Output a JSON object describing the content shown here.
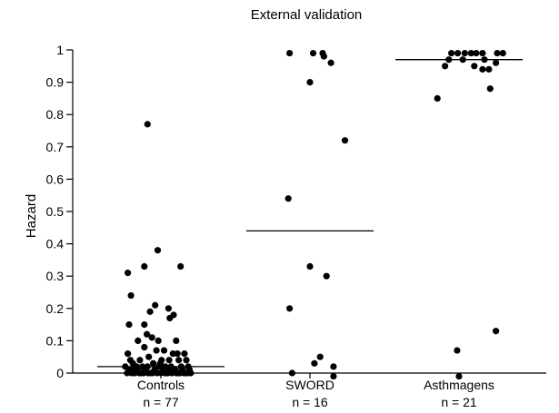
{
  "chart_data": {
    "type": "scatter",
    "title": "External validation",
    "xlabel": "",
    "ylabel": "Hazard",
    "ylim": [
      0,
      1
    ],
    "yticks": [
      0,
      0.1,
      0.2,
      0.3,
      0.4,
      0.5,
      0.6,
      0.7,
      0.8,
      0.9,
      1
    ],
    "ytick_labels": [
      "0",
      "0.1",
      "0.2",
      "0.3",
      "0.4",
      "0.5",
      "0.6",
      "0.7",
      "0.8",
      "0.9",
      "1"
    ],
    "grid": false,
    "categories": [
      {
        "label": "Controls",
        "n_label": "n = 77"
      },
      {
        "label": "SWORD",
        "n_label": "n = 16"
      },
      {
        "label": "Asthmagens",
        "n_label": "n = 21"
      }
    ],
    "series": [
      {
        "category": "Controls",
        "median": 0.02,
        "points": [
          [
            -0.52,
            0.31
          ],
          [
            -0.5,
            0.15
          ],
          [
            -0.47,
            0.24
          ],
          [
            -0.21,
            0.77
          ],
          [
            -0.05,
            0.38
          ],
          [
            -0.26,
            0.33
          ],
          [
            0.31,
            0.33
          ],
          [
            -0.09,
            0.21
          ],
          [
            0.12,
            0.2
          ],
          [
            0.2,
            0.18
          ],
          [
            -0.17,
            0.19
          ],
          [
            -0.26,
            0.15
          ],
          [
            0.14,
            0.17
          ],
          [
            -0.22,
            0.12
          ],
          [
            -0.36,
            0.1
          ],
          [
            -0.14,
            0.11
          ],
          [
            -0.04,
            0.1
          ],
          [
            0.24,
            0.1
          ],
          [
            -0.52,
            0.06
          ],
          [
            -0.26,
            0.08
          ],
          [
            -0.07,
            0.07
          ],
          [
            0.05,
            0.07
          ],
          [
            0.19,
            0.06
          ],
          [
            0.26,
            0.06
          ],
          [
            0.37,
            0.06
          ],
          [
            -0.48,
            0.04
          ],
          [
            -0.33,
            0.04
          ],
          [
            -0.19,
            0.05
          ],
          [
            0.01,
            0.04
          ],
          [
            0.13,
            0.04
          ],
          [
            0.28,
            0.04
          ],
          [
            0.4,
            0.04
          ],
          [
            -0.56,
            0.02
          ],
          [
            -0.44,
            0.01
          ],
          [
            -0.38,
            0.02
          ],
          [
            -0.29,
            0.02
          ],
          [
            -0.21,
            0.02
          ],
          [
            -0.12,
            0.03
          ],
          [
            -0.03,
            0.02
          ],
          [
            0.07,
            0.02
          ],
          [
            0.16,
            0.02
          ],
          [
            0.23,
            0.01
          ],
          [
            0.32,
            0.02
          ],
          [
            0.43,
            0.02
          ],
          [
            -0.53,
            0.0
          ],
          [
            -0.46,
            0.0
          ],
          [
            -0.41,
            0.0
          ],
          [
            -0.34,
            0.0
          ],
          [
            -0.27,
            0.0
          ],
          [
            -0.2,
            0.0
          ],
          [
            -0.13,
            0.0
          ],
          [
            -0.06,
            0.0
          ],
          [
            0.0,
            0.0
          ],
          [
            0.06,
            0.0
          ],
          [
            0.11,
            0.0
          ],
          [
            0.17,
            0.0
          ],
          [
            0.24,
            0.0
          ],
          [
            0.3,
            0.0
          ],
          [
            0.36,
            0.0
          ],
          [
            0.42,
            0.0
          ],
          [
            0.47,
            0.0
          ],
          [
            -0.5,
            0.01
          ],
          [
            -0.37,
            0.01
          ],
          [
            -0.24,
            0.01
          ],
          [
            -0.1,
            0.01
          ],
          [
            0.03,
            0.01
          ],
          [
            0.19,
            0.01
          ],
          [
            0.34,
            0.01
          ],
          [
            0.45,
            0.01
          ],
          [
            -0.16,
            0.0
          ],
          [
            0.09,
            0.0
          ],
          [
            0.27,
            0.0
          ],
          [
            -0.31,
            0.0
          ],
          [
            0.39,
            0.0
          ],
          [
            -0.44,
            0.03
          ],
          [
            0.14,
            0.01
          ],
          [
            -0.01,
            0.03
          ]
        ]
      },
      {
        "category": "SWORD",
        "median": 0.44,
        "points": [
          [
            -0.32,
            0.99
          ],
          [
            0.05,
            0.99
          ],
          [
            0.2,
            0.99
          ],
          [
            0.22,
            0.98
          ],
          [
            0.33,
            0.96
          ],
          [
            0.0,
            0.9
          ],
          [
            0.55,
            0.72
          ],
          [
            -0.34,
            0.54
          ],
          [
            0.0,
            0.33
          ],
          [
            0.26,
            0.3
          ],
          [
            -0.32,
            0.2
          ],
          [
            0.16,
            0.05
          ],
          [
            0.37,
            0.02
          ],
          [
            -0.28,
            0.0
          ],
          [
            0.37,
            -0.01
          ],
          [
            0.07,
            0.03
          ]
        ]
      },
      {
        "category": "Asthmagens",
        "median": 0.97,
        "points": [
          [
            -0.12,
            0.99
          ],
          [
            -0.02,
            0.99
          ],
          [
            0.09,
            0.99
          ],
          [
            0.19,
            0.99
          ],
          [
            0.27,
            0.99
          ],
          [
            0.37,
            0.99
          ],
          [
            0.6,
            0.99
          ],
          [
            0.69,
            0.99
          ],
          [
            -0.16,
            0.97
          ],
          [
            0.06,
            0.97
          ],
          [
            0.4,
            0.97
          ],
          [
            0.58,
            0.96
          ],
          [
            -0.22,
            0.95
          ],
          [
            0.24,
            0.95
          ],
          [
            0.37,
            0.94
          ],
          [
            0.47,
            0.94
          ],
          [
            -0.34,
            0.85
          ],
          [
            0.49,
            0.88
          ],
          [
            -0.03,
            0.07
          ],
          [
            0.58,
            0.13
          ],
          [
            0.0,
            -0.01
          ]
        ]
      }
    ]
  }
}
